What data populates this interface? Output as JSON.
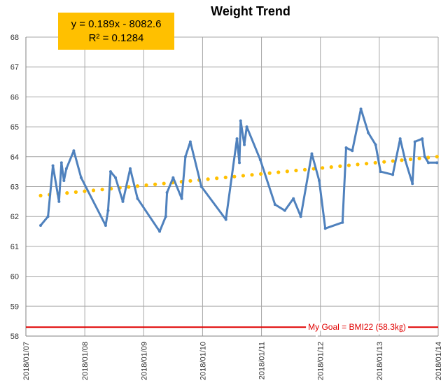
{
  "chart_data": {
    "type": "line",
    "title": "Weight Trend",
    "xlabel": "",
    "ylabel": "",
    "ylim": [
      58,
      68
    ],
    "yticks": [
      58,
      59,
      60,
      61,
      62,
      63,
      64,
      65,
      66,
      67,
      68
    ],
    "xlim": [
      "2018/01/07",
      "2018/01/14"
    ],
    "xticks": [
      "2018/01/07",
      "2018/01/08",
      "2018/01/09",
      "2018/01/10",
      "2018/01/11",
      "2018/01/12",
      "2018/01/13",
      "2018/01/14"
    ],
    "grid": true,
    "series": [
      {
        "type": "line",
        "color": "#4f81bd",
        "x": [
          "2018/01/07 06:00",
          "2018/01/07 09:00",
          "2018/01/07 11:00",
          "2018/01/07 13:30",
          "2018/01/07 14:30",
          "2018/01/07 15:30",
          "2018/01/07 16:30",
          "2018/01/07 19:30",
          "2018/01/07 22:30",
          "2018/01/08 08:30",
          "2018/01/08 09:30",
          "2018/01/08 10:30",
          "2018/01/08 12:30",
          "2018/01/08 15:30",
          "2018/01/08 18:30",
          "2018/01/08 21:30",
          "2018/01/09 06:30",
          "2018/01/09 09:00",
          "2018/01/09 09:30",
          "2018/01/09 12:00",
          "2018/01/09 15:30",
          "2018/01/09 17:00",
          "2018/01/09 19:00",
          "2018/01/09 23:30",
          "2018/01/10 09:30",
          "2018/01/10 14:00",
          "2018/01/10 15:00",
          "2018/01/10 15:30",
          "2018/01/10 17:00",
          "2018/01/10 18:00",
          "2018/01/10 23:30",
          "2018/01/11 05:30",
          "2018/01/11 09:30",
          "2018/01/11 13:00",
          "2018/01/11 16:00",
          "2018/01/11 20:30",
          "2018/01/11 23:30",
          "2018/01/12 02:00",
          "2018/01/12 09:00",
          "2018/01/12 10:30",
          "2018/01/12 13:00",
          "2018/01/12 16:30",
          "2018/01/12 19:30",
          "2018/01/12 22:30",
          "2018/01/13 00:30",
          "2018/01/13 05:30",
          "2018/01/13 08:30",
          "2018/01/13 10:30",
          "2018/01/13 13:30",
          "2018/01/13 14:30",
          "2018/01/13 17:30",
          "2018/01/13 18:30",
          "2018/01/13 20:00",
          "2018/01/13 23:30"
        ],
        "values": [
          61.7,
          62.0,
          63.7,
          62.5,
          63.8,
          63.2,
          63.6,
          64.2,
          63.3,
          61.7,
          62.2,
          63.5,
          63.3,
          62.5,
          63.6,
          62.6,
          61.5,
          62.0,
          62.8,
          63.3,
          62.6,
          64.0,
          64.5,
          63.0,
          61.9,
          64.6,
          63.8,
          65.2,
          64.4,
          65.0,
          63.9,
          62.4,
          62.2,
          62.6,
          62.0,
          64.1,
          63.2,
          61.6,
          61.8,
          64.3,
          64.2,
          65.6,
          64.8,
          64.4,
          63.5,
          63.4,
          64.6,
          63.9,
          63.1,
          64.5,
          64.6,
          64.0,
          63.8,
          63.8
        ]
      },
      {
        "type": "trendline",
        "color": "#ffc000",
        "equation": "y = 0.189x - 8082.6",
        "r_squared": "R² = 0.1284",
        "x": [
          "2018/01/07 06:00",
          "2018/01/13 23:30"
        ],
        "values": [
          62.7,
          64.0
        ]
      }
    ],
    "goal_line": {
      "label": "My Goal = BMI22 (58.3㎏)",
      "value": 58.3,
      "color": "#e00000"
    },
    "colors": {
      "series": "#4f81bd",
      "trend": "#ffc000",
      "goal": "#e00000",
      "grid": "#a6a6a6"
    }
  }
}
